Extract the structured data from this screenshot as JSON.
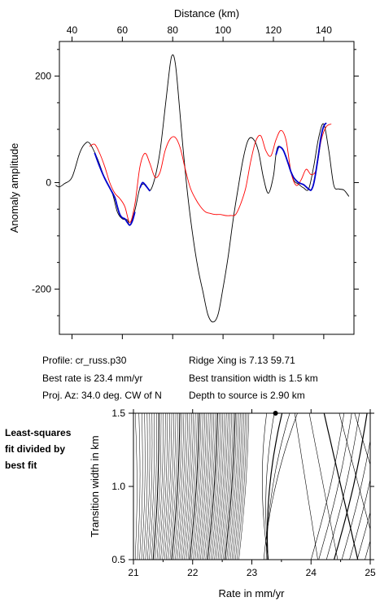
{
  "info": {
    "profile": "Profile: cr_russ.p30",
    "best_rate": "Best rate is 23.4 mm/yr",
    "proj_az": "Proj. Az: 34.0 deg. CW of N",
    "ridge_xing": "Ridge Xing is 7.13 59.71",
    "best_width": "Best transition width is 1.5 km",
    "depth": "Depth to source is   2.90 km"
  },
  "side_label": [
    "Least-squares",
    "fit divided by",
    "best fit"
  ],
  "colors": {
    "observed": "#000000",
    "model": "#ff0000",
    "fit_segment": "#0000cc",
    "contours": "#000000"
  },
  "chart_data": [
    {
      "type": "line",
      "xlabel": "Distance (km)",
      "ylabel": "Anomaly amplitude",
      "xlim": [
        35,
        152
      ],
      "ylim": [
        -285,
        265
      ],
      "xticks": [
        40,
        60,
        80,
        100,
        120,
        140
      ],
      "yticks": [
        -200,
        0,
        200
      ],
      "x_axis_position": "top",
      "grid": false,
      "series": [
        {
          "role": "observed",
          "color": "#000000",
          "x": [
            33.5,
            35,
            37,
            40,
            43,
            45,
            47,
            50,
            53,
            56,
            58,
            60,
            62,
            63,
            65,
            67,
            69,
            71,
            73,
            75,
            77,
            79,
            80,
            81,
            82,
            84,
            86,
            88,
            90,
            92,
            94,
            96,
            98,
            100,
            102,
            104,
            106,
            108,
            110,
            112,
            114,
            116,
            118,
            120,
            121,
            122,
            124,
            126,
            128,
            130,
            132,
            134,
            136,
            138,
            140,
            142,
            144,
            146,
            148,
            150
          ],
          "y": [
            -5,
            -8,
            -2,
            10,
            55,
            72,
            74,
            46,
            8,
            -20,
            -55,
            -68,
            -70,
            -80,
            -52,
            -10,
            -3,
            -15,
            10,
            60,
            140,
            222,
            240,
            225,
            180,
            70,
            -25,
            -100,
            -160,
            -205,
            -248,
            -262,
            -248,
            -198,
            -140,
            -70,
            -10,
            45,
            80,
            82,
            60,
            10,
            -20,
            12,
            52,
            68,
            60,
            35,
            5,
            -3,
            -10,
            -12,
            30,
            85,
            110,
            60,
            -5,
            -12,
            -14,
            -26
          ]
        },
        {
          "role": "model",
          "color": "#ff0000",
          "x": [
            47,
            49,
            51,
            53,
            55,
            57,
            59,
            61,
            63,
            65,
            67,
            69,
            71,
            73,
            75,
            77,
            79,
            81,
            83,
            85,
            87,
            89,
            91,
            93,
            95,
            97,
            99,
            101,
            103,
            105,
            107,
            109,
            111,
            113,
            115,
            117,
            119,
            121,
            123,
            125,
            127,
            129,
            131,
            133,
            135,
            137,
            139,
            141,
            143
          ],
          "y": [
            68,
            72,
            55,
            30,
            0,
            -20,
            -30,
            -45,
            -75,
            -40,
            30,
            55,
            35,
            10,
            20,
            60,
            82,
            85,
            65,
            25,
            -10,
            -30,
            -45,
            -55,
            -58,
            -60,
            -60,
            -62,
            -62,
            -60,
            -40,
            -10,
            40,
            78,
            88,
            60,
            50,
            80,
            98,
            80,
            20,
            -5,
            5,
            25,
            15,
            25,
            80,
            105,
            110
          ]
        },
        {
          "role": "fit_segment",
          "color": "#0000cc",
          "segments": [
            {
              "x": [
                49,
                51,
                53,
                55,
                57,
                58,
                59,
                60,
                61,
                62,
                63,
                64,
                65
              ],
              "y": [
                56,
                30,
                8,
                -10,
                -28,
                -45,
                -60,
                -66,
                -68,
                -75,
                -80,
                -72,
                -55
              ]
            },
            {
              "x": [
                67,
                68,
                69,
                70,
                71
              ],
              "y": [
                -10,
                0,
                -4,
                -10,
                -16
              ]
            },
            {
              "x": [
                121,
                122,
                123,
                124,
                125,
                126,
                127,
                128,
                129,
                130,
                131,
                132,
                133,
                134,
                135,
                136,
                137,
                138,
                139,
                140,
                141
              ],
              "y": [
                52,
                66,
                66,
                60,
                48,
                34,
                20,
                10,
                4,
                0,
                -2,
                -4,
                -8,
                -12,
                -14,
                -2,
                24,
                56,
                88,
                106,
                112
              ]
            }
          ]
        }
      ]
    },
    {
      "type": "contour",
      "title": "",
      "xlabel": "Rate in mm/yr",
      "ylabel": "Transition width in km",
      "xlim": [
        21,
        25
      ],
      "ylim": [
        0.5,
        1.5
      ],
      "xticks": [
        21,
        22,
        23,
        24,
        25
      ],
      "yticks": [
        0.5,
        1.0,
        1.5
      ],
      "best_fit_point": {
        "x": 23.4,
        "y": 1.5
      }
    }
  ]
}
